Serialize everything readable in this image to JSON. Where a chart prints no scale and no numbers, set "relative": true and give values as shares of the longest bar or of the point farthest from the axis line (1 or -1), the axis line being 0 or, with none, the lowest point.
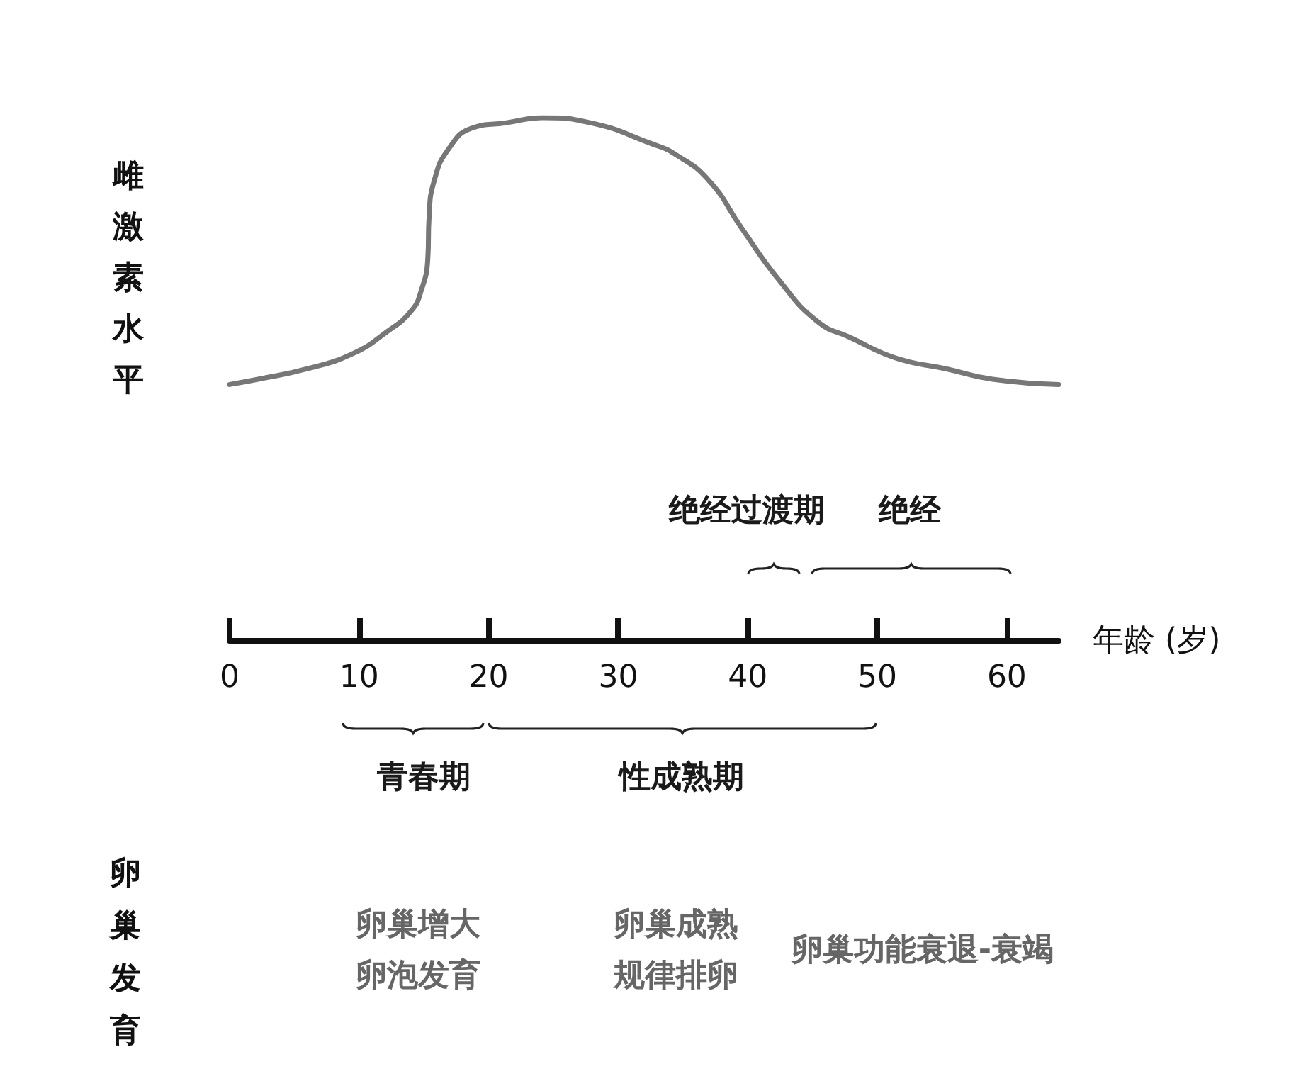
{
  "chart_data": {
    "type": "line",
    "relative": true,
    "xlabel": "年龄 (岁)",
    "ylabel": "雌激素水平",
    "xlim": [
      0,
      64
    ],
    "xticks": [
      0,
      10,
      20,
      30,
      40,
      50,
      60
    ],
    "marker": "none",
    "line_style": "solid",
    "x": [
      0,
      2.2,
      6,
      9.6,
      12.1,
      14,
      14.8,
      15.3,
      15.4,
      15.8,
      16.9,
      18.7,
      21.3,
      24.2,
      27.9,
      32.6,
      34.4,
      37,
      39.5,
      42.4,
      45.4,
      47.9,
      51.5,
      55.3,
      58.9,
      64
    ],
    "series": [
      {
        "color": "#777777",
        "values": [
          0.49,
          0.5,
          0.52,
          0.55,
          0.59,
          0.63,
          0.67,
          0.73,
          0.81,
          0.88,
          0.94,
          0.98,
          0.99,
          1,
          0.99,
          0.95,
          0.93,
          0.88,
          0.79,
          0.69,
          0.61,
          0.58,
          0.54,
          0.52,
          0.5,
          0.49
        ]
      }
    ],
    "annotations": [
      "绝经过渡期",
      "绝经",
      "青春期",
      "性成熟期",
      "卵巢发育",
      "卵巢增大",
      "卵泡发育",
      "卵巢成熟",
      "规律排卵",
      "卵巢功能衰退-衰竭"
    ]
  }
}
